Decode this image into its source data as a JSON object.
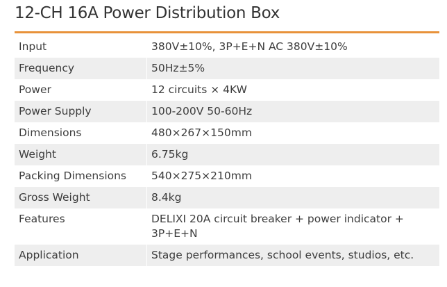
{
  "page": {
    "title": "12-CH 16A Power Distribution Box",
    "accent_color": "#e8923a",
    "shade_color": "#eeeeee"
  },
  "specs": [
    {
      "label": "Input",
      "value": "380V±10%, 3P+E+N AC 380V±10%"
    },
    {
      "label": "Frequency",
      "value": "50Hz±5%"
    },
    {
      "label": "Power",
      "value": "12 circuits × 4KW"
    },
    {
      "label": "Power Supply",
      "value": "100-200V 50-60Hz"
    },
    {
      "label": "Dimensions",
      "value": "480×267×150mm"
    },
    {
      "label": "Weight",
      "value": "6.75kg"
    },
    {
      "label": "Packing Dimensions",
      "value": "540×275×210mm"
    },
    {
      "label": "Gross Weight",
      "value": "8.4kg"
    },
    {
      "label": "Features",
      "value": "DELIXI 20A circuit breaker + power indicator + 3P+E+N"
    },
    {
      "label": "Application",
      "value": "Stage performances, school events, studios, etc."
    }
  ]
}
